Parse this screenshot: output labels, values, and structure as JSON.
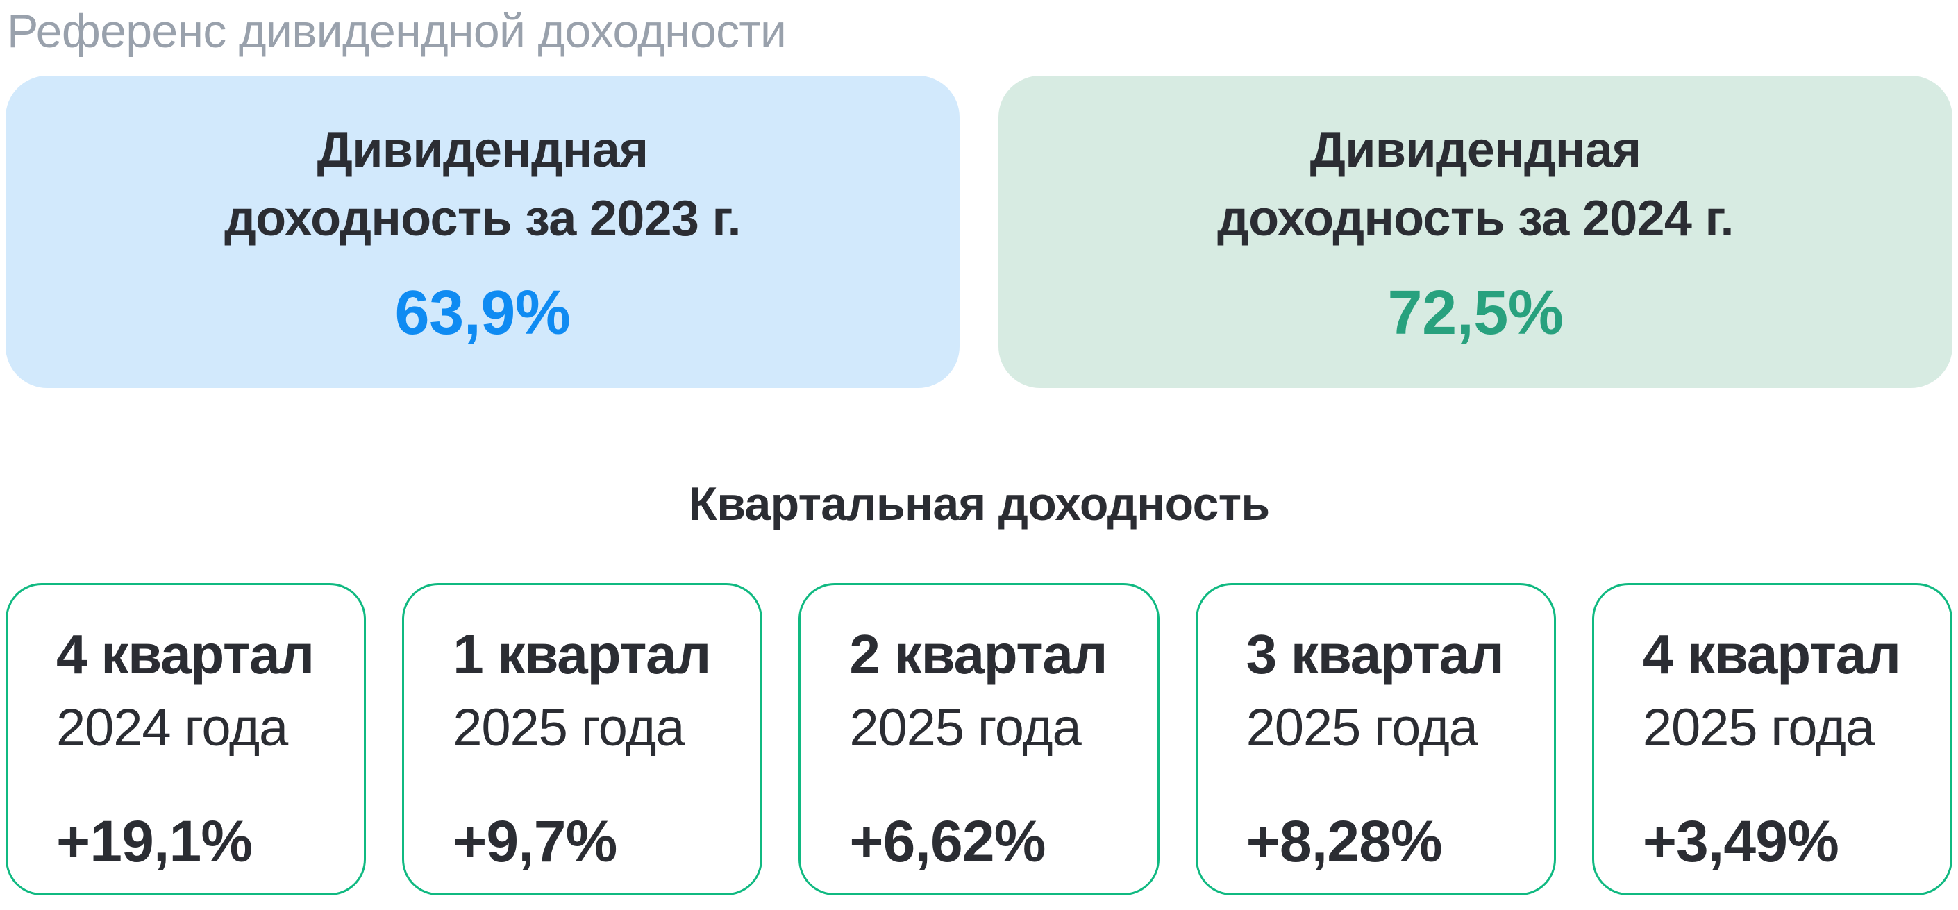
{
  "page": {
    "title": "Референс дивидендной доходности"
  },
  "annual_cards": [
    {
      "label_line1": "Дивидендная",
      "label_line2": "доходность за 2023 г.",
      "value": "63,9%"
    },
    {
      "label_line1": "Дивидендная",
      "label_line2": "доходность за 2024 г.",
      "value": "72,5%"
    }
  ],
  "section": {
    "heading": "Квартальная доходность"
  },
  "quarter_cards": [
    {
      "quarter": "4 квартал",
      "year": "2024 года",
      "value": "+19,1%"
    },
    {
      "quarter": "1 квартал",
      "year": "2025 года",
      "value": "+9,7%"
    },
    {
      "quarter": "2 квартал",
      "year": "2025 года",
      "value": "+6,62%"
    },
    {
      "quarter": "3 квартал",
      "year": "2025 года",
      "value": "+8,28%"
    },
    {
      "quarter": "4 квартал",
      "year": "2025 года",
      "value": "+3,49%"
    }
  ],
  "colors": {
    "page_background": "#ffffff",
    "title_gray": "#99a1ac",
    "text_dark": "#2b2d33",
    "card_2023_bg": "#d2e9fc",
    "card_2023_value": "#0f8bf2",
    "card_2024_bg": "#d7ebe2",
    "card_2024_value": "#28a17e",
    "quarter_card_border": "#10b981"
  },
  "chart_data": {
    "type": "table",
    "title": "Референс дивидендной доходности",
    "annual_yield": {
      "categories": [
        "2023",
        "2024"
      ],
      "values_pct": [
        63.9,
        72.5
      ],
      "labels": [
        "Дивидендная доходность за 2023 г.",
        "Дивидендная доходность за 2024 г."
      ]
    },
    "quarterly_returns": {
      "heading": "Квартальная доходность",
      "categories": [
        "4 квартал 2024 года",
        "1 квартал 2025 года",
        "2 квартал 2025 года",
        "3 квартал 2025 года",
        "4 квартал 2025 года"
      ],
      "values_pct": [
        19.1,
        9.7,
        6.62,
        8.28,
        3.49
      ],
      "values_text": [
        "+19,1%",
        "+9,7%",
        "+6,62%",
        "+8,28%",
        "+3,49%"
      ]
    }
  }
}
